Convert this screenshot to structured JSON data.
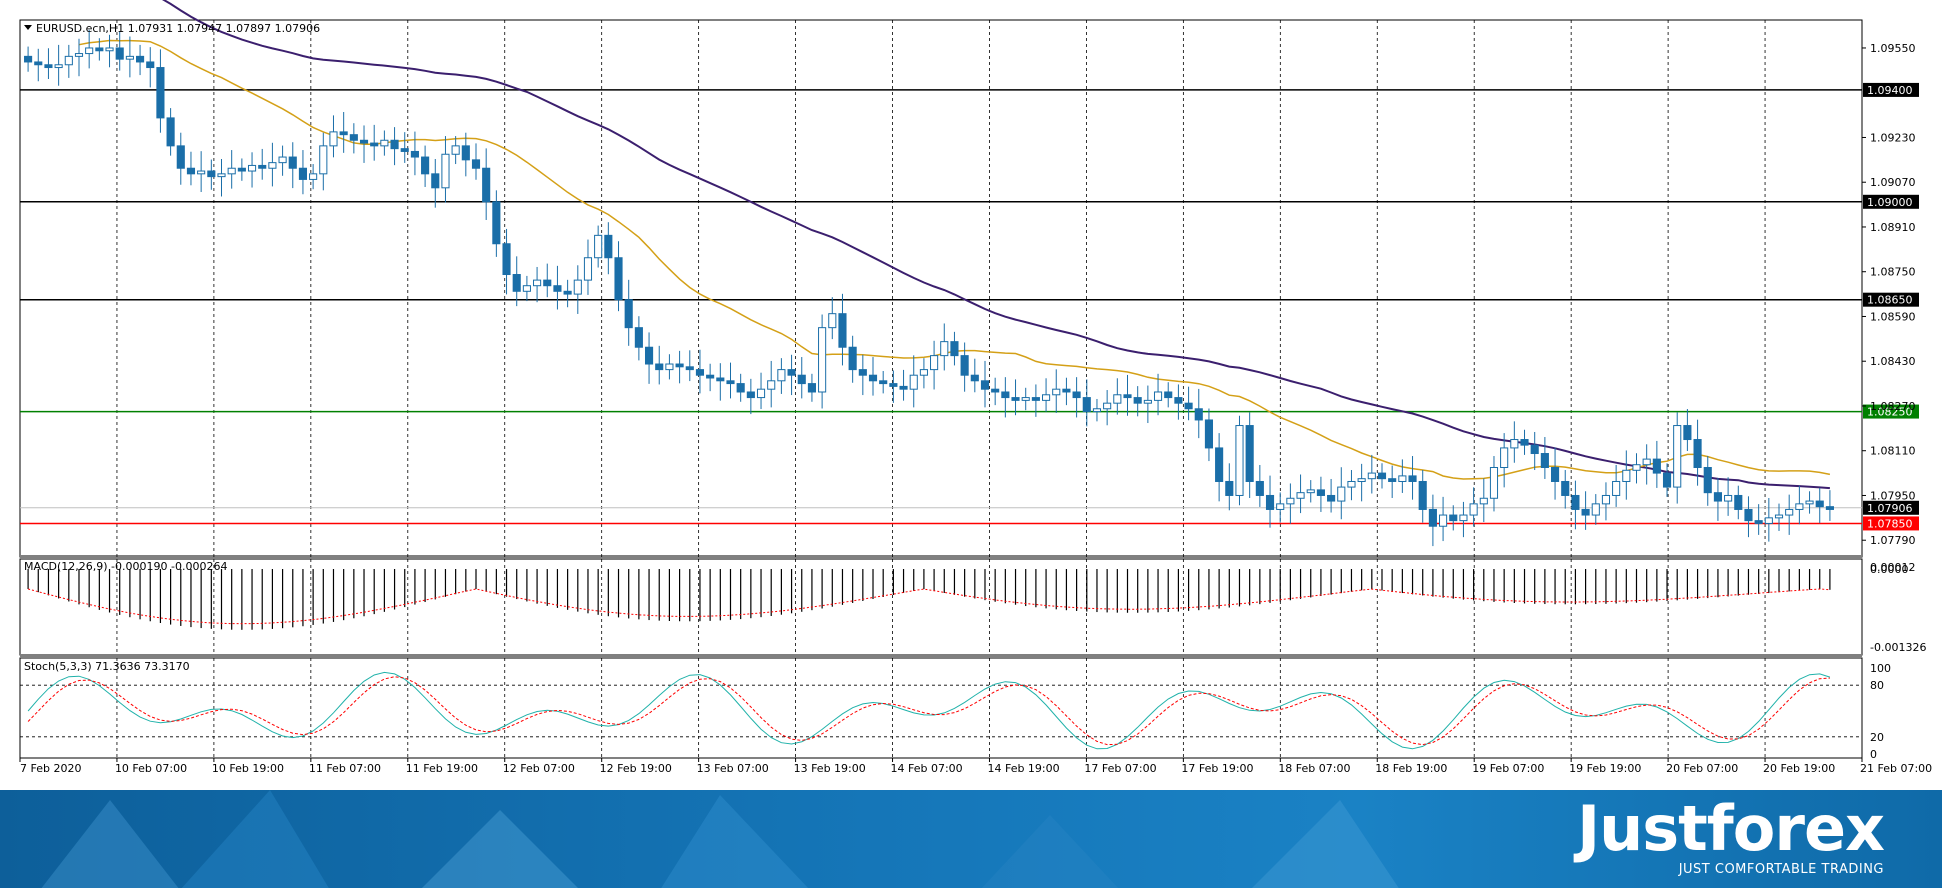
{
  "header": {
    "symbol_info": "EURUSD.ecn,H1  1.07931 1.07947 1.07897 1.07906"
  },
  "indicators": {
    "macd_label": "MACD(12,26,9) -0.000190 -0.000264",
    "stoch_label": "Stoch(5,3,3) 71.3636 73.3170"
  },
  "colors": {
    "candle": "#1a6ea8",
    "ma_fast": "#d4a017",
    "ma_slow": "#3b1f6e",
    "level_black": "#000000",
    "level_support_green": "#008000",
    "level_red": "#ff0000",
    "stoch_main": "#20b2aa",
    "stoch_signal": "#ff0000",
    "brand_bg": "#1576b8"
  },
  "branding": {
    "logo": "Justforex",
    "tagline": "JUST COMFORTABLE TRADING"
  },
  "chart_data": [
    {
      "type": "candlestick",
      "title": "EURUSD.ecn,H1  1.07931 1.07947 1.07897 1.07906",
      "ylim": [
        1.0773,
        1.0965
      ],
      "yticks": [
        "1.09550",
        "1.09230",
        "1.09070",
        "1.08910",
        "1.08750",
        "1.08590",
        "1.08430",
        "1.08270",
        "1.08110",
        "1.07950",
        "1.07790"
      ],
      "x_labels": [
        "7 Feb 2020",
        "10 Feb 07:00",
        "10 Feb 19:00",
        "11 Feb 07:00",
        "11 Feb 19:00",
        "12 Feb 07:00",
        "12 Feb 19:00",
        "13 Feb 07:00",
        "13 Feb 19:00",
        "14 Feb 07:00",
        "14 Feb 19:00",
        "17 Feb 07:00",
        "17 Feb 19:00",
        "18 Feb 07:00",
        "18 Feb 19:00",
        "19 Feb 07:00",
        "19 Feb 19:00",
        "20 Feb 07:00",
        "20 Feb 19:00",
        "21 Feb 07:00"
      ],
      "horizontal_levels": [
        {
          "value": "1.09400",
          "color": "#000000"
        },
        {
          "value": "1.09000",
          "color": "#000000"
        },
        {
          "value": "1.08650",
          "color": "#000000"
        },
        {
          "value": "1.08250",
          "color": "#008000"
        },
        {
          "value": "1.07850",
          "color": "#ff0000"
        }
      ],
      "current_price": "1.07906",
      "series_close": [
        1.095,
        1.0949,
        1.0948,
        1.0949,
        1.0952,
        1.0953,
        1.0955,
        1.0954,
        1.0955,
        1.0951,
        1.0952,
        1.095,
        1.0948,
        1.093,
        1.092,
        1.0912,
        1.091,
        1.0911,
        1.0909,
        1.091,
        1.0912,
        1.0911,
        1.0913,
        1.0912,
        1.0914,
        1.0916,
        1.0912,
        1.0908,
        1.091,
        1.092,
        1.0925,
        1.0924,
        1.0922,
        1.0921,
        1.092,
        1.0922,
        1.0919,
        1.0918,
        1.0916,
        1.091,
        1.0905,
        1.0917,
        1.092,
        1.0915,
        1.0912,
        1.09,
        1.0885,
        1.0874,
        1.0868,
        1.087,
        1.0872,
        1.087,
        1.0868,
        1.0867,
        1.0872,
        1.088,
        1.0888,
        1.088,
        1.0865,
        1.0855,
        1.0848,
        1.0842,
        1.084,
        1.0842,
        1.0841,
        1.084,
        1.0838,
        1.0837,
        1.0836,
        1.0835,
        1.0832,
        1.083,
        1.0833,
        1.0836,
        1.084,
        1.0838,
        1.0835,
        1.0832,
        1.0855,
        1.086,
        1.0848,
        1.084,
        1.0838,
        1.0836,
        1.0835,
        1.0834,
        1.0833,
        1.0838,
        1.084,
        1.0845,
        1.085,
        1.0845,
        1.0838,
        1.0836,
        1.0833,
        1.0832,
        1.083,
        1.0829,
        1.083,
        1.0829,
        1.0831,
        1.0833,
        1.0832,
        1.083,
        1.0825,
        1.0826,
        1.0828,
        1.0831,
        1.083,
        1.0828,
        1.0829,
        1.0832,
        1.083,
        1.0828,
        1.0826,
        1.0822,
        1.0812,
        1.08,
        1.0795,
        1.082,
        1.08,
        1.0795,
        1.079,
        1.0792,
        1.0794,
        1.0796,
        1.0797,
        1.0795,
        1.0793,
        1.0798,
        1.08,
        1.0801,
        1.0803,
        1.0801,
        1.08,
        1.0802,
        1.08,
        1.079,
        1.0784,
        1.0788,
        1.0786,
        1.0788,
        1.0792,
        1.0794,
        1.0805,
        1.0812,
        1.0815,
        1.0813,
        1.081,
        1.0805,
        1.08,
        1.0795,
        1.079,
        1.0788,
        1.0792,
        1.0795,
        1.08,
        1.0804,
        1.0806,
        1.0808,
        1.0803,
        1.0798,
        1.082,
        1.0815,
        1.0805,
        1.0796,
        1.0793,
        1.0795,
        1.079,
        1.0786,
        1.0785,
        1.0787,
        1.0788,
        1.079,
        1.0792,
        1.0793,
        1.0791,
        1.079
      ]
    },
    {
      "type": "histogram",
      "title": "MACD(12,26,9) -0.000190 -0.000264",
      "yticks": [
        "0.00012",
        "0.0000",
        "-0.001326"
      ]
    },
    {
      "type": "line",
      "title": "Stoch(5,3,3) 71.3636 73.3170",
      "ylim": [
        0,
        100
      ],
      "yticks": [
        "100",
        "80",
        "20",
        "0"
      ]
    }
  ]
}
